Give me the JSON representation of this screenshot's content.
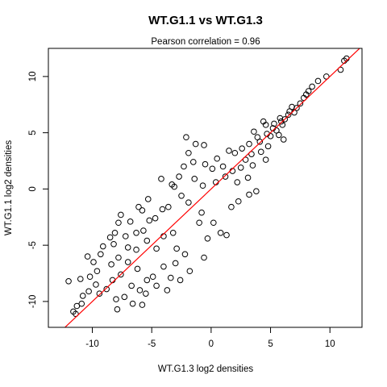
{
  "chart_data": {
    "type": "scatter",
    "title": "WT.G1.1 vs WT.G1.3",
    "subtitle": "Pearson correlation =  0.96",
    "xlabel": "WT.G1.3 log2 densities",
    "ylabel": "WT.G1.1 log2 densities",
    "xlim": [
      -13.7,
      12.7
    ],
    "ylim": [
      -12.3,
      12.5
    ],
    "x_ticks": [
      -10,
      -5,
      0,
      5,
      10
    ],
    "y_ticks": [
      -10,
      -5,
      0,
      5,
      10
    ],
    "x_tick_labels": [
      "-10",
      "-5",
      "0",
      "5",
      "10"
    ],
    "y_tick_labels": [
      "-10",
      "-5",
      "0",
      "5",
      "10"
    ],
    "grid": false,
    "point_style": "open-circle",
    "marker_color": "#000000",
    "line_color": "#ff0000",
    "reference_line": {
      "slope": 1,
      "intercept": 0
    },
    "points": [
      [
        11.4,
        11.6
      ],
      [
        11.2,
        11.4
      ],
      [
        10.9,
        10.6
      ],
      [
        9.7,
        10.0
      ],
      [
        9.0,
        9.6
      ],
      [
        8.5,
        9.1
      ],
      [
        8.2,
        8.7
      ],
      [
        8.0,
        8.4
      ],
      [
        7.8,
        8.1
      ],
      [
        7.5,
        7.6
      ],
      [
        7.2,
        7.2
      ],
      [
        7.0,
        6.8
      ],
      [
        6.8,
        7.3
      ],
      [
        6.5,
        6.6
      ],
      [
        6.2,
        6.2
      ],
      [
        6.0,
        5.7
      ],
      [
        5.8,
        6.3
      ],
      [
        5.5,
        5.2
      ],
      [
        5.3,
        5.8
      ],
      [
        5.0,
        4.7
      ],
      [
        5.7,
        4.8
      ],
      [
        6.1,
        4.4
      ],
      [
        4.6,
        5.7
      ],
      [
        4.4,
        6.0
      ],
      [
        4.8,
        3.8
      ],
      [
        4.2,
        3.3
      ],
      [
        4.6,
        2.6
      ],
      [
        3.9,
        4.6
      ],
      [
        3.6,
        5.1
      ],
      [
        3.5,
        2.1
      ],
      [
        3.1,
        1.0
      ],
      [
        3.2,
        4.0
      ],
      [
        2.6,
        3.6
      ],
      [
        2.0,
        3.2
      ],
      [
        1.5,
        3.4
      ],
      [
        2.5,
        1.9
      ],
      [
        2.2,
        0.6
      ],
      [
        3.8,
        -0.2
      ],
      [
        3.2,
        -0.5
      ],
      [
        2.3,
        -1.1
      ],
      [
        1.7,
        -1.6
      ],
      [
        1.0,
        2.0
      ],
      [
        0.5,
        2.7
      ],
      [
        0.1,
        1.8
      ],
      [
        -0.5,
        2.2
      ],
      [
        -1.5,
        2.4
      ],
      [
        -1.9,
        3.2
      ],
      [
        -2.3,
        2.0
      ],
      [
        -2.1,
        4.6
      ],
      [
        -1.3,
        4.0
      ],
      [
        -0.6,
        3.9
      ],
      [
        -4.2,
        0.9
      ],
      [
        -3.1,
        0.2
      ],
      [
        -2.5,
        -0.6
      ],
      [
        -1.9,
        -1.2
      ],
      [
        -0.8,
        -2.1
      ],
      [
        0.2,
        -3.0
      ],
      [
        0.8,
        -3.9
      ],
      [
        1.3,
        -4.1
      ],
      [
        -0.3,
        -4.4
      ],
      [
        -1.0,
        -3.0
      ],
      [
        -3.6,
        -1.6
      ],
      [
        -4.1,
        -1.8
      ],
      [
        -4.7,
        -2.6
      ],
      [
        -5.3,
        -0.9
      ],
      [
        -6.1,
        -1.6
      ],
      [
        -7.6,
        -2.3
      ],
      [
        -5.2,
        -2.8
      ],
      [
        -5.7,
        -3.7
      ],
      [
        -6.3,
        -3.9
      ],
      [
        -7.2,
        -4.2
      ],
      [
        -7.8,
        -3.0
      ],
      [
        -8.1,
        -3.9
      ],
      [
        -8.5,
        -4.3
      ],
      [
        -7.0,
        -5.2
      ],
      [
        -6.3,
        -5.4
      ],
      [
        -5.4,
        -4.6
      ],
      [
        -4.6,
        -5.3
      ],
      [
        -4.0,
        -4.2
      ],
      [
        -3.2,
        -3.9
      ],
      [
        -2.9,
        -5.3
      ],
      [
        -2.2,
        -5.8
      ],
      [
        -3.0,
        -6.6
      ],
      [
        -1.8,
        -7.3
      ],
      [
        -0.6,
        -6.1
      ],
      [
        -4.0,
        -6.9
      ],
      [
        -4.9,
        -7.8
      ],
      [
        -5.4,
        -8.1
      ],
      [
        -6.2,
        -7.1
      ],
      [
        -7.0,
        -6.5
      ],
      [
        -7.8,
        -6.1
      ],
      [
        -8.4,
        -6.7
      ],
      [
        -9.3,
        -5.8
      ],
      [
        -9.9,
        -6.5
      ],
      [
        -9.6,
        -7.3
      ],
      [
        -10.2,
        -7.8
      ],
      [
        -9.7,
        -8.5
      ],
      [
        -10.3,
        -9.1
      ],
      [
        -10.8,
        -9.5
      ],
      [
        -9.4,
        -9.3
      ],
      [
        -8.8,
        -8.9
      ],
      [
        -8.3,
        -8.1
      ],
      [
        -7.6,
        -7.6
      ],
      [
        -8.0,
        -9.8
      ],
      [
        -7.3,
        -9.6
      ],
      [
        -6.7,
        -8.6
      ],
      [
        -6.0,
        -9.0
      ],
      [
        -5.5,
        -9.3
      ],
      [
        -4.6,
        -8.6
      ],
      [
        -3.7,
        -9.0
      ],
      [
        -3.4,
        -7.9
      ],
      [
        -2.6,
        -8.1
      ],
      [
        -5.8,
        -10.3
      ],
      [
        -6.6,
        -10.2
      ],
      [
        -7.9,
        -10.7
      ],
      [
        -11.3,
        -10.4
      ],
      [
        -11.6,
        -10.9
      ],
      [
        -11.4,
        -11.1
      ],
      [
        -10.9,
        -10.2
      ],
      [
        -12.0,
        -8.2
      ],
      [
        -11.0,
        -8.0
      ],
      [
        -10.4,
        -6.0
      ],
      [
        -9.1,
        -5.1
      ],
      [
        -8.2,
        -4.9
      ],
      [
        -6.8,
        -2.9
      ],
      [
        -5.8,
        -1.9
      ],
      [
        -3.3,
        0.4
      ],
      [
        -2.7,
        1.1
      ],
      [
        -1.4,
        0.9
      ],
      [
        -0.7,
        0.3
      ],
      [
        0.4,
        0.6
      ],
      [
        1.2,
        1.1
      ],
      [
        1.8,
        1.6
      ],
      [
        2.9,
        2.6
      ],
      [
        3.4,
        3.1
      ],
      [
        4.1,
        4.2
      ],
      [
        4.7,
        4.9
      ],
      [
        5.2,
        5.4
      ],
      [
        5.9,
        6.0
      ],
      [
        6.6,
        6.9
      ]
    ]
  }
}
